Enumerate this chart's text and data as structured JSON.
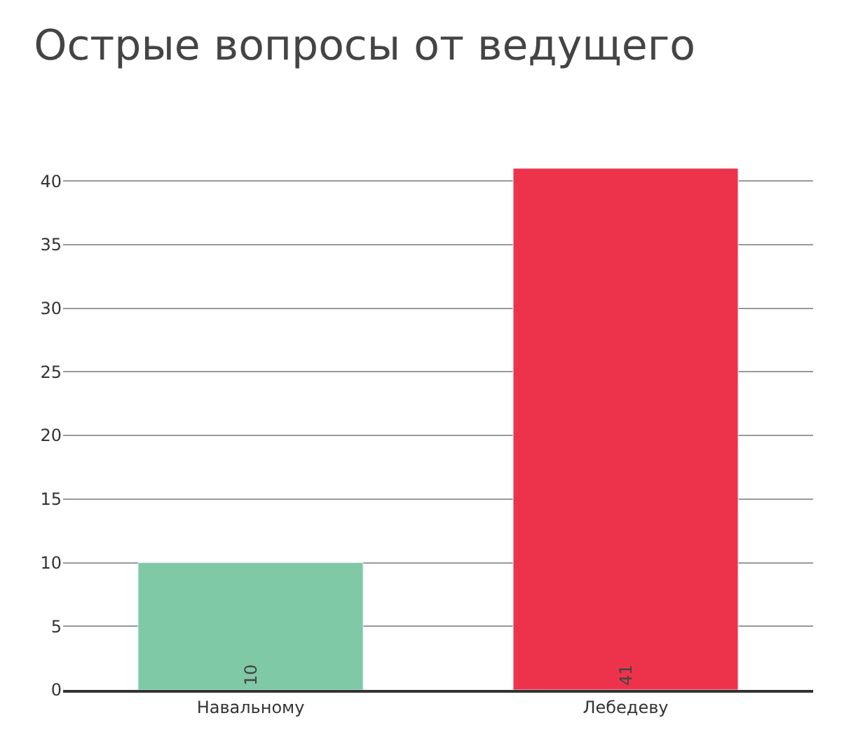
{
  "chart_data": {
    "type": "bar",
    "title": "Острые вопросы от ведущего",
    "categories": [
      "Навальному",
      "Лебедеву"
    ],
    "values": [
      10,
      41
    ],
    "colors": [
      "#7fc9a6",
      "#ed334b"
    ],
    "ylim": [
      0,
      41
    ],
    "yticks": [
      0,
      5,
      10,
      15,
      20,
      25,
      30,
      35,
      40
    ],
    "grid": "y",
    "data_labels": true
  }
}
